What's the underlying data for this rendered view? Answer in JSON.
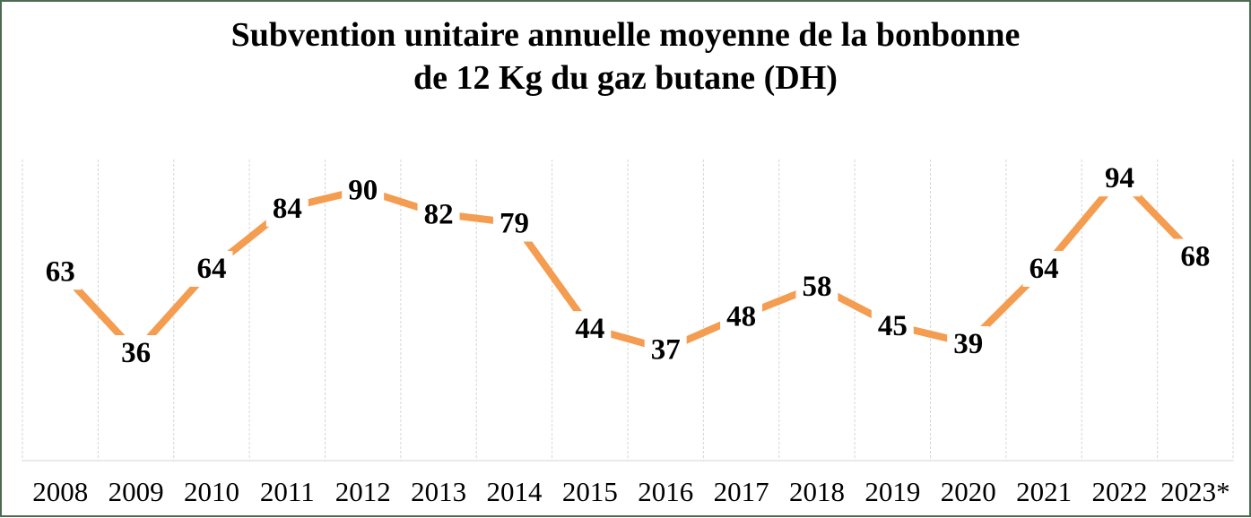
{
  "window": {
    "background": "#FFFFFF",
    "border_color": "#4C6B52"
  },
  "title": {
    "line1": "Subvention unitaire annuelle moyenne de la bonbonne",
    "line2": "de 12 Kg du gaz butane (DH)"
  },
  "chart_data": {
    "type": "line",
    "title": "Subvention unitaire annuelle moyenne de la bonbonne de 12 Kg du gaz butane (DH)",
    "categories": [
      "2008",
      "2009",
      "2010",
      "2011",
      "2012",
      "2013",
      "2014",
      "2015",
      "2016",
      "2017",
      "2018",
      "2019",
      "2020",
      "2021",
      "2022",
      "2023*"
    ],
    "values": [
      63,
      36,
      64,
      84,
      90,
      82,
      79,
      44,
      37,
      48,
      58,
      45,
      39,
      64,
      94,
      68
    ],
    "xlabel": "",
    "ylabel": "",
    "ylim": [
      0,
      100
    ],
    "grid": "vertical-category-boundaries",
    "legend": "none",
    "data_labels_position": "centered-on-points",
    "colors": {
      "line": "#F49C50",
      "data_labels": "#000000",
      "gridlines": "#D6D6D6",
      "axis_line": "#D6D6D6",
      "tick_labels": "#000000",
      "title": "#000000"
    }
  }
}
